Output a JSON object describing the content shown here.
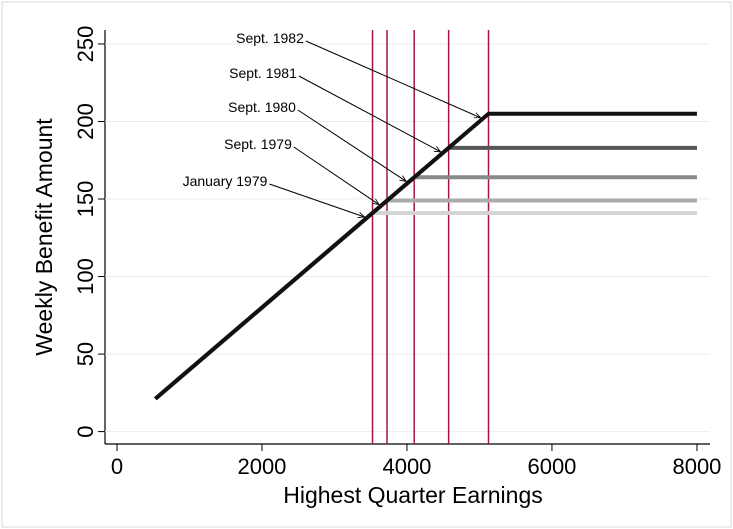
{
  "chart_data": {
    "type": "line",
    "xlabel": "Highest Quarter Earnings",
    "ylabel": "Weekly Benefit Amount",
    "xlim": [
      -165,
      8180
    ],
    "ylim": [
      -8,
      259
    ],
    "xticks": [
      0,
      2000,
      4000,
      6000,
      8000
    ],
    "yticks": [
      0,
      50,
      100,
      150,
      200,
      250
    ],
    "grid": true,
    "vline_color": "#a3173f",
    "series": [
      {
        "name": "January 1979",
        "color": "#d4d4d4",
        "x": [
          530,
          3525,
          8000
        ],
        "values": [
          21.2,
          141,
          141
        ]
      },
      {
        "name": "Sept. 1979",
        "color": "#ababab",
        "x": [
          530,
          3725,
          8000
        ],
        "values": [
          21.2,
          149,
          149
        ]
      },
      {
        "name": "Sept. 1980",
        "color": "#8a8a8a",
        "x": [
          530,
          4100,
          8000
        ],
        "values": [
          21.2,
          164,
          164
        ]
      },
      {
        "name": "Sept. 1981",
        "color": "#555555",
        "x": [
          530,
          4575,
          8000
        ],
        "values": [
          21.2,
          183,
          183
        ]
      },
      {
        "name": "Sept. 1982",
        "color": "#111111",
        "x": [
          530,
          5125,
          8000
        ],
        "values": [
          21.2,
          205,
          205
        ]
      }
    ]
  }
}
